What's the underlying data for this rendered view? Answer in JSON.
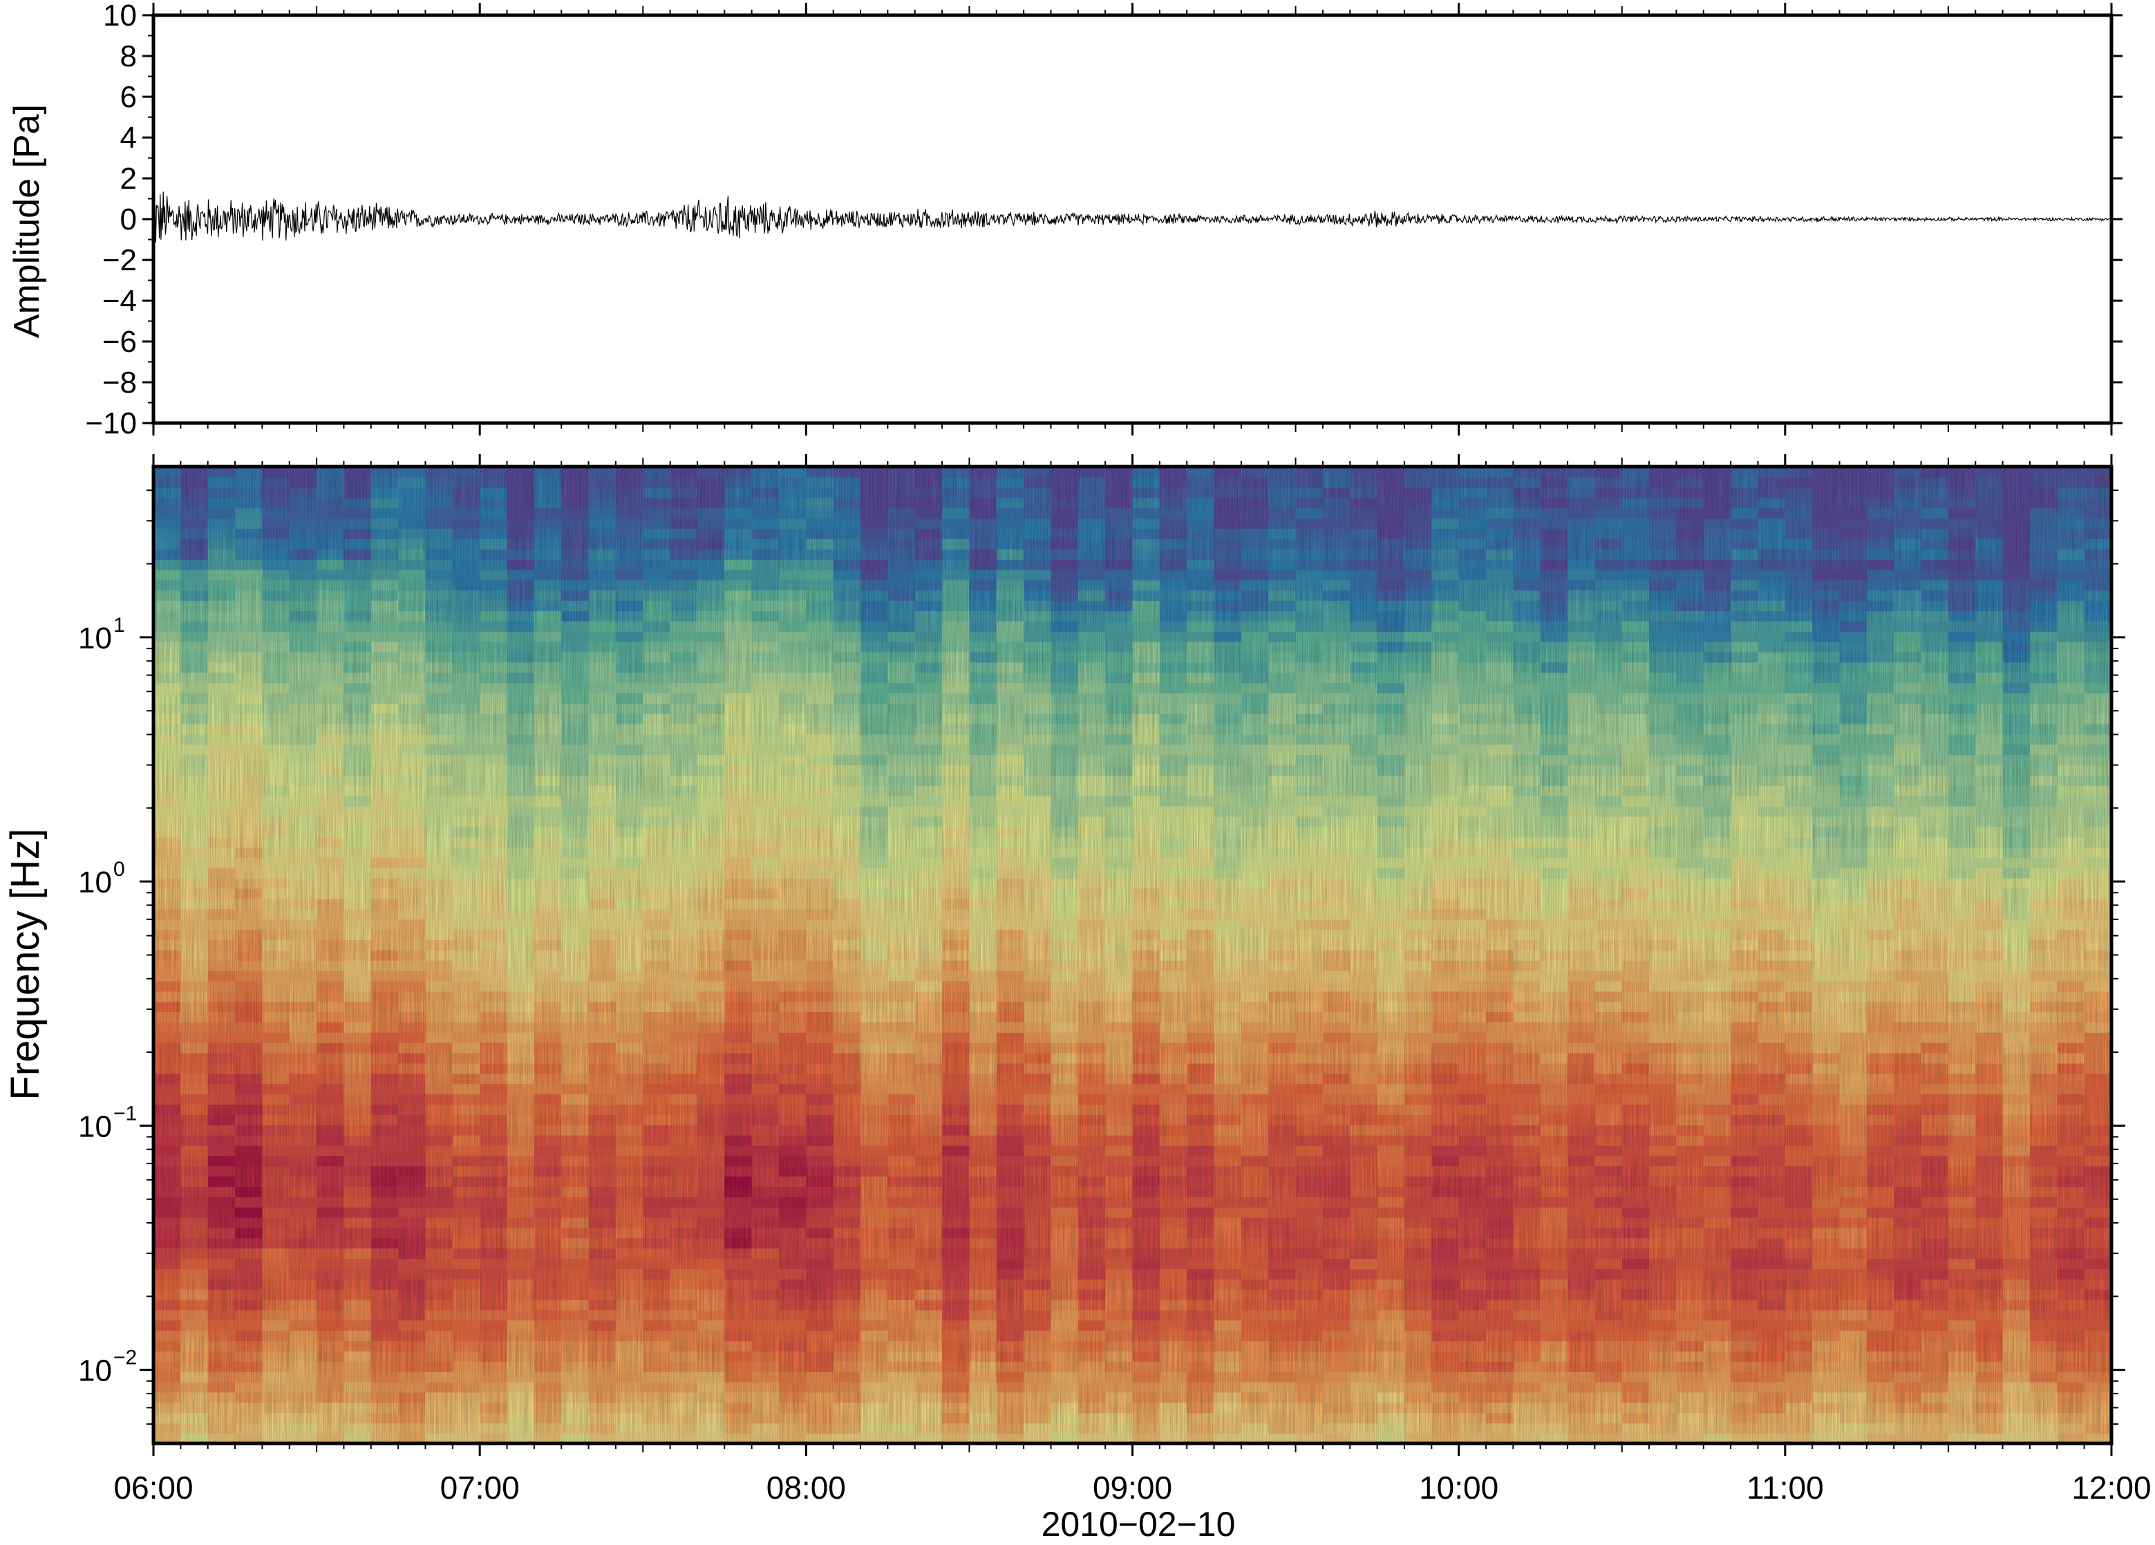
{
  "chart_data": [
    {
      "type": "line",
      "panel": "waveform",
      "ylabel": "Amplitude [Pa]",
      "ylim": [
        -10,
        10
      ],
      "yticks": [
        10,
        8,
        6,
        4,
        2,
        0,
        -2,
        -4,
        -6,
        -8,
        -10
      ],
      "ytick_labels": [
        "10",
        "8",
        "6",
        "4",
        "2",
        "0",
        "−2",
        "−4",
        "−6",
        "−8",
        "−10"
      ],
      "xlim_hours": [
        6,
        12
      ],
      "envelope": {
        "t_hours": [
          6.0,
          6.1,
          6.25,
          6.4,
          6.55,
          6.7,
          6.85,
          7.0,
          7.2,
          7.4,
          7.55,
          7.65,
          7.75,
          7.85,
          8.0,
          8.2,
          8.4,
          8.6,
          8.8,
          9.0,
          9.3,
          9.6,
          9.75,
          9.9,
          10.2,
          10.5,
          10.8,
          11.1,
          11.4,
          11.7,
          12.0
        ],
        "amplitude_pa": [
          1.9,
          1.3,
          1.1,
          1.2,
          1.0,
          0.8,
          0.4,
          0.3,
          0.3,
          0.35,
          0.5,
          1.0,
          1.3,
          1.0,
          0.6,
          0.45,
          0.6,
          0.4,
          0.35,
          0.3,
          0.25,
          0.3,
          0.5,
          0.3,
          0.2,
          0.2,
          0.15,
          0.15,
          0.1,
          0.1,
          0.08
        ]
      },
      "grid": false
    },
    {
      "type": "heatmap",
      "panel": "spectrogram",
      "ylabel": "Frequency [Hz]",
      "y_scale": "log",
      "ylim_hz": [
        0.005,
        50
      ],
      "yticks": [
        {
          "value": 10,
          "base": "10",
          "exp": "1"
        },
        {
          "value": 1,
          "base": "10",
          "exp": "0"
        },
        {
          "value": 0.1,
          "base": "10",
          "exp": "−1"
        },
        {
          "value": 0.01,
          "base": "10",
          "exp": "−2"
        }
      ],
      "xlabel": "2010−02−10",
      "xticks": [
        "06:00",
        "07:00",
        "08:00",
        "09:00",
        "10:00",
        "11:00",
        "12:00"
      ],
      "xlim_hours": [
        6,
        12
      ],
      "colormap": "rainbow",
      "colors": [
        "#5e4fa2",
        "#3288bd",
        "#66c2a5",
        "#abdda4",
        "#e6f598",
        "#fee08b",
        "#fdae61",
        "#f46d43",
        "#d53e4f",
        "#9e0142"
      ],
      "intensity_profile": {
        "log10_freq": [
          1.7,
          1.3,
          1.0,
          0.7,
          0.4,
          0.0,
          -0.4,
          -0.8,
          -1.2,
          -1.6,
          -2.0,
          -2.3
        ],
        "level_0_to_1": [
          0.05,
          0.12,
          0.25,
          0.35,
          0.42,
          0.52,
          0.62,
          0.75,
          0.85,
          0.82,
          0.7,
          0.55
        ]
      },
      "grid": false
    }
  ]
}
